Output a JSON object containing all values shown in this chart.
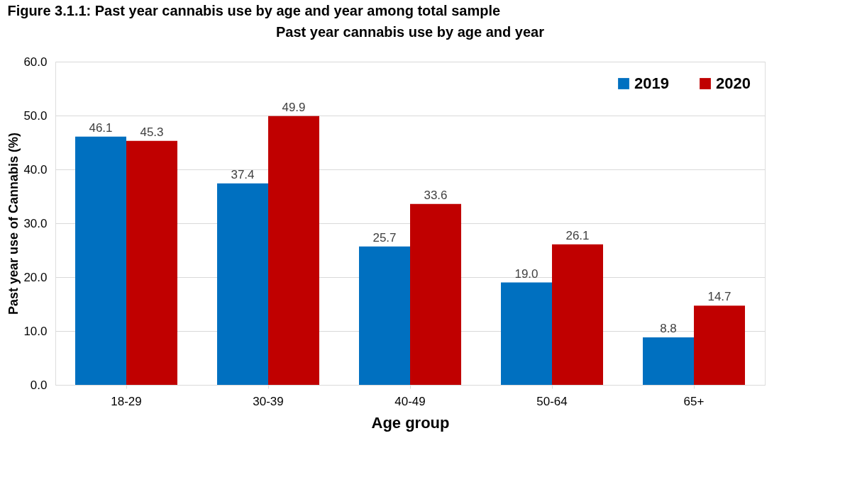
{
  "chart_data": {
    "type": "bar",
    "title": "Past year cannabis use by age and year",
    "xlabel": "Age group",
    "ylabel": "Past year use of Cannabis (%)",
    "annotations": [
      "Figure 3.1.1: Past year cannabis use by age and year among total sample"
    ],
    "categories": [
      "18-29",
      "30-39",
      "40-49",
      "50-64",
      "65+"
    ],
    "series": [
      {
        "name": "2019",
        "color": "#0070c0",
        "values": [
          46.1,
          37.4,
          25.7,
          19.0,
          8.8
        ],
        "value_labels": [
          "46.1",
          "37.4",
          "25.7",
          "19.0",
          "8.8"
        ]
      },
      {
        "name": "2020",
        "color": "#c00000",
        "values": [
          45.3,
          49.9,
          33.6,
          26.1,
          14.7
        ],
        "value_labels": [
          "45.3",
          "49.9",
          "33.6",
          "26.1",
          "14.7"
        ]
      }
    ],
    "ylim": [
      0,
      60
    ],
    "yticks": [
      {
        "value": 0,
        "label": "0.0"
      },
      {
        "value": 10,
        "label": "10.0"
      },
      {
        "value": 20,
        "label": "20.0"
      },
      {
        "value": 30,
        "label": "30.0"
      },
      {
        "value": 40,
        "label": "40.0"
      },
      {
        "value": 50,
        "label": "50.0"
      },
      {
        "value": 60,
        "label": "60.0"
      }
    ],
    "grid": "y",
    "legend": "top right"
  }
}
